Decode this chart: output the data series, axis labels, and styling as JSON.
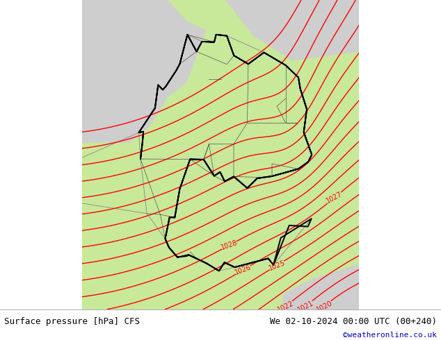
{
  "title_left": "Surface pressure [hPa] CFS",
  "title_right": "We 02-10-2024 00:00 UTC (00+240)",
  "credit": "©weatheronline.co.uk",
  "bg_green": "#c8e89a",
  "bg_gray": "#cecece",
  "contour_color": "#ff0000",
  "germany_border_color": "#000000",
  "state_border_color": "#333333",
  "other_border_color": "#888888",
  "contour_linewidth": 1.0,
  "germany_linewidth": 1.4,
  "lon_min": 3.0,
  "lon_max": 17.5,
  "lat_min": 46.0,
  "lat_max": 56.2,
  "pressure_levels": [
    1020,
    1021,
    1022,
    1023,
    1024,
    1025,
    1026,
    1027,
    1028,
    1029,
    1030,
    1031,
    1032,
    1033,
    1034,
    1035,
    1036,
    1037,
    1038
  ],
  "label_levels": [
    1020,
    1021,
    1022,
    1025,
    1026,
    1027,
    1028
  ],
  "title_fontsize": 9,
  "credit_fontsize": 8,
  "text_color": "#000000",
  "credit_color": "#0000cc"
}
